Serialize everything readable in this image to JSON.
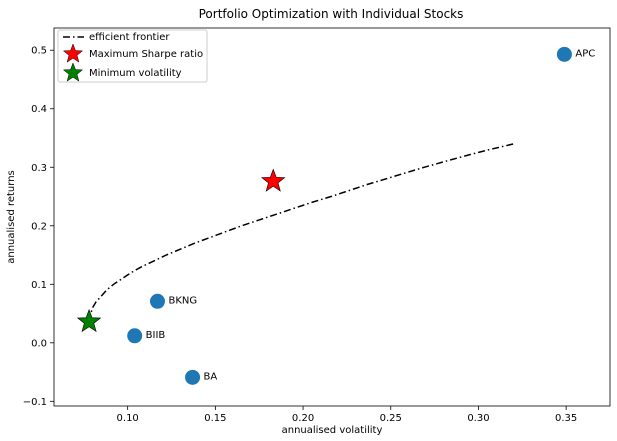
{
  "chart_data": {
    "type": "scatter",
    "title": "Portfolio Optimization with Individual Stocks",
    "xlabel": "annualised volatility",
    "ylabel": "annualised returns",
    "xlim": [
      0.058,
      0.375
    ],
    "ylim": [
      -0.108,
      0.538
    ],
    "xticks": [
      0.1,
      0.15,
      0.2,
      0.25,
      0.3,
      0.35
    ],
    "xtick_labels": [
      "0.10",
      "0.15",
      "0.20",
      "0.25",
      "0.30",
      "0.35"
    ],
    "yticks": [
      -0.1,
      0.0,
      0.1,
      0.2,
      0.3,
      0.4,
      0.5
    ],
    "ytick_labels": [
      "−0.1",
      "0.0",
      "0.1",
      "0.2",
      "0.3",
      "0.4",
      "0.5"
    ],
    "grid": false,
    "legend_position": "top-left",
    "legend": [
      {
        "label": "efficient frontier",
        "marker": "dashdot-line",
        "color": "#000000"
      },
      {
        "label": "Maximum Sharpe ratio",
        "marker": "star",
        "color": "#ff0000"
      },
      {
        "label": "Minimum volatility",
        "marker": "star",
        "color": "#008000"
      }
    ],
    "stocks": {
      "color": "#1f77b4",
      "points": [
        {
          "label": "APC",
          "x": 0.349,
          "y": 0.493
        },
        {
          "label": "BKNG",
          "x": 0.117,
          "y": 0.071
        },
        {
          "label": "BIIB",
          "x": 0.104,
          "y": 0.012
        },
        {
          "label": "BA",
          "x": 0.137,
          "y": -0.059
        }
      ]
    },
    "max_sharpe": {
      "x": 0.183,
      "y": 0.276,
      "color": "#ff0000"
    },
    "min_volatility": {
      "x": 0.078,
      "y": 0.036,
      "color": "#008000"
    },
    "efficient_frontier": {
      "color": "#000000",
      "points": [
        [
          0.078,
          0.036
        ],
        [
          0.079,
          0.05
        ],
        [
          0.08,
          0.06
        ],
        [
          0.082,
          0.07
        ],
        [
          0.085,
          0.08
        ],
        [
          0.088,
          0.09
        ],
        [
          0.092,
          0.1
        ],
        [
          0.097,
          0.11
        ],
        [
          0.102,
          0.12
        ],
        [
          0.108,
          0.13
        ],
        [
          0.115,
          0.14
        ],
        [
          0.122,
          0.15
        ],
        [
          0.13,
          0.16
        ],
        [
          0.138,
          0.17
        ],
        [
          0.147,
          0.18
        ],
        [
          0.156,
          0.19
        ],
        [
          0.165,
          0.2
        ],
        [
          0.175,
          0.21
        ],
        [
          0.185,
          0.22
        ],
        [
          0.195,
          0.23
        ],
        [
          0.205,
          0.24
        ],
        [
          0.216,
          0.25
        ],
        [
          0.226,
          0.26
        ],
        [
          0.236,
          0.27
        ],
        [
          0.247,
          0.28
        ],
        [
          0.258,
          0.29
        ],
        [
          0.269,
          0.3
        ],
        [
          0.281,
          0.31
        ],
        [
          0.293,
          0.32
        ],
        [
          0.306,
          0.33
        ],
        [
          0.32,
          0.34
        ]
      ]
    }
  }
}
